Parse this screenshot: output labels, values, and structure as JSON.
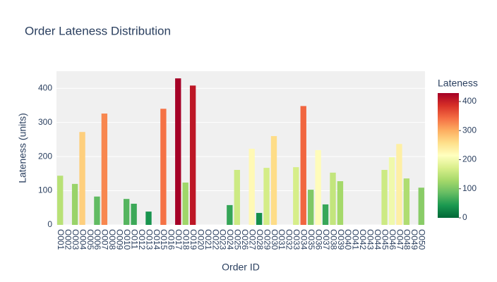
{
  "chart_data": {
    "type": "bar",
    "title": "Order Lateness Distribution",
    "x_label": "Order ID",
    "y_label": "Lateness (units)",
    "colorbar_title": "Lateness",
    "categories": [
      "O001",
      "O002",
      "O003",
      "O004",
      "O005",
      "O006",
      "O007",
      "O008",
      "O009",
      "O010",
      "O011",
      "O012",
      "O013",
      "O014",
      "O015",
      "O016",
      "O017",
      "O018",
      "O019",
      "O020",
      "O021",
      "O022",
      "O023",
      "O024",
      "O025",
      "O026",
      "O027",
      "O028",
      "O029",
      "O030",
      "O031",
      "O032",
      "O033",
      "O034",
      "O035",
      "O036",
      "O037",
      "O038",
      "O039",
      "O040",
      "O041",
      "O042",
      "O043",
      "O044",
      "O045",
      "O046",
      "O047",
      "O048",
      "O049",
      "O050"
    ],
    "values": [
      144,
      0,
      120,
      272,
      0,
      83,
      326,
      0,
      0,
      76,
      62,
      0,
      39,
      0,
      340,
      0,
      429,
      124,
      408,
      0,
      0,
      0,
      0,
      58,
      161,
      0,
      223,
      35,
      167,
      260,
      0,
      0,
      169,
      348,
      103,
      219,
      60,
      153,
      128,
      0,
      0,
      0,
      0,
      0,
      161,
      198,
      237,
      136,
      0,
      109
    ],
    "colorscale": [
      "#006837",
      "#1a9850",
      "#66bd63",
      "#a6d96a",
      "#d9ef8b",
      "#ffffbf",
      "#fee08b",
      "#fdae61",
      "#f46d43",
      "#d73027",
      "#a50026"
    ],
    "clim": [
      0,
      429
    ],
    "cticks": [
      0,
      100,
      200,
      300,
      400
    ],
    "ylim": [
      0,
      450
    ],
    "yticks": [
      0,
      100,
      200,
      300,
      400
    ],
    "grid": true
  }
}
